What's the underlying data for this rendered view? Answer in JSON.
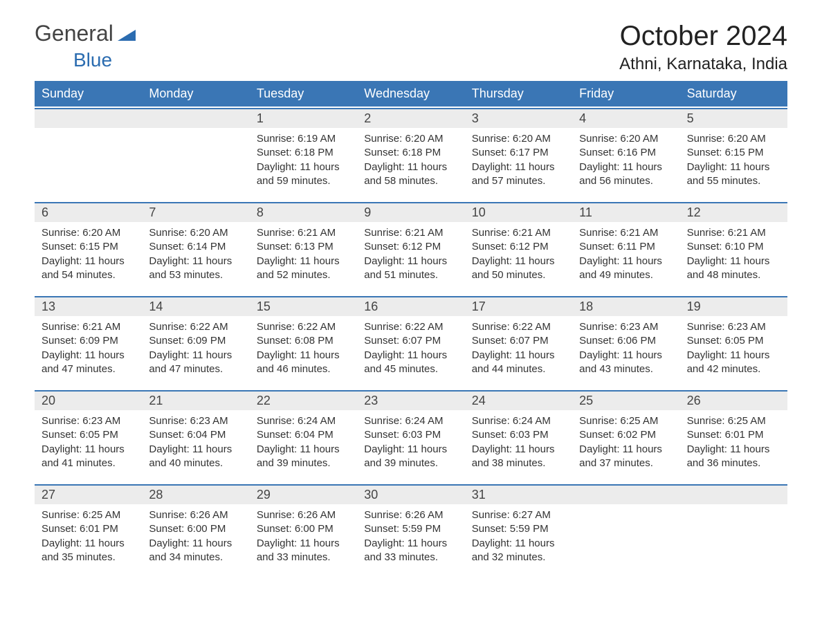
{
  "logo": {
    "general": "General",
    "blue": "Blue"
  },
  "title": "October 2024",
  "location": "Athni, Karnataka, India",
  "colors": {
    "header_bg": "#3a76b5",
    "header_text": "#ffffff",
    "daynum_bg": "#ececec",
    "border": "#3a76b5",
    "text": "#333333",
    "logo_blue": "#2b6cb0",
    "background": "#ffffff"
  },
  "typography": {
    "title_fontsize": 40,
    "location_fontsize": 24,
    "dayheader_fontsize": 18,
    "daynum_fontsize": 18,
    "cell_fontsize": 15,
    "font_family": "Arial"
  },
  "day_names": [
    "Sunday",
    "Monday",
    "Tuesday",
    "Wednesday",
    "Thursday",
    "Friday",
    "Saturday"
  ],
  "labels": {
    "sunrise": "Sunrise:",
    "sunset": "Sunset:",
    "daylight": "Daylight:"
  },
  "weeks": [
    [
      null,
      null,
      {
        "d": "1",
        "sr": "6:19 AM",
        "ss": "6:18 PM",
        "dl": "11 hours and 59 minutes."
      },
      {
        "d": "2",
        "sr": "6:20 AM",
        "ss": "6:18 PM",
        "dl": "11 hours and 58 minutes."
      },
      {
        "d": "3",
        "sr": "6:20 AM",
        "ss": "6:17 PM",
        "dl": "11 hours and 57 minutes."
      },
      {
        "d": "4",
        "sr": "6:20 AM",
        "ss": "6:16 PM",
        "dl": "11 hours and 56 minutes."
      },
      {
        "d": "5",
        "sr": "6:20 AM",
        "ss": "6:15 PM",
        "dl": "11 hours and 55 minutes."
      }
    ],
    [
      {
        "d": "6",
        "sr": "6:20 AM",
        "ss": "6:15 PM",
        "dl": "11 hours and 54 minutes."
      },
      {
        "d": "7",
        "sr": "6:20 AM",
        "ss": "6:14 PM",
        "dl": "11 hours and 53 minutes."
      },
      {
        "d": "8",
        "sr": "6:21 AM",
        "ss": "6:13 PM",
        "dl": "11 hours and 52 minutes."
      },
      {
        "d": "9",
        "sr": "6:21 AM",
        "ss": "6:12 PM",
        "dl": "11 hours and 51 minutes."
      },
      {
        "d": "10",
        "sr": "6:21 AM",
        "ss": "6:12 PM",
        "dl": "11 hours and 50 minutes."
      },
      {
        "d": "11",
        "sr": "6:21 AM",
        "ss": "6:11 PM",
        "dl": "11 hours and 49 minutes."
      },
      {
        "d": "12",
        "sr": "6:21 AM",
        "ss": "6:10 PM",
        "dl": "11 hours and 48 minutes."
      }
    ],
    [
      {
        "d": "13",
        "sr": "6:21 AM",
        "ss": "6:09 PM",
        "dl": "11 hours and 47 minutes."
      },
      {
        "d": "14",
        "sr": "6:22 AM",
        "ss": "6:09 PM",
        "dl": "11 hours and 47 minutes."
      },
      {
        "d": "15",
        "sr": "6:22 AM",
        "ss": "6:08 PM",
        "dl": "11 hours and 46 minutes."
      },
      {
        "d": "16",
        "sr": "6:22 AM",
        "ss": "6:07 PM",
        "dl": "11 hours and 45 minutes."
      },
      {
        "d": "17",
        "sr": "6:22 AM",
        "ss": "6:07 PM",
        "dl": "11 hours and 44 minutes."
      },
      {
        "d": "18",
        "sr": "6:23 AM",
        "ss": "6:06 PM",
        "dl": "11 hours and 43 minutes."
      },
      {
        "d": "19",
        "sr": "6:23 AM",
        "ss": "6:05 PM",
        "dl": "11 hours and 42 minutes."
      }
    ],
    [
      {
        "d": "20",
        "sr": "6:23 AM",
        "ss": "6:05 PM",
        "dl": "11 hours and 41 minutes."
      },
      {
        "d": "21",
        "sr": "6:23 AM",
        "ss": "6:04 PM",
        "dl": "11 hours and 40 minutes."
      },
      {
        "d": "22",
        "sr": "6:24 AM",
        "ss": "6:04 PM",
        "dl": "11 hours and 39 minutes."
      },
      {
        "d": "23",
        "sr": "6:24 AM",
        "ss": "6:03 PM",
        "dl": "11 hours and 39 minutes."
      },
      {
        "d": "24",
        "sr": "6:24 AM",
        "ss": "6:03 PM",
        "dl": "11 hours and 38 minutes."
      },
      {
        "d": "25",
        "sr": "6:25 AM",
        "ss": "6:02 PM",
        "dl": "11 hours and 37 minutes."
      },
      {
        "d": "26",
        "sr": "6:25 AM",
        "ss": "6:01 PM",
        "dl": "11 hours and 36 minutes."
      }
    ],
    [
      {
        "d": "27",
        "sr": "6:25 AM",
        "ss": "6:01 PM",
        "dl": "11 hours and 35 minutes."
      },
      {
        "d": "28",
        "sr": "6:26 AM",
        "ss": "6:00 PM",
        "dl": "11 hours and 34 minutes."
      },
      {
        "d": "29",
        "sr": "6:26 AM",
        "ss": "6:00 PM",
        "dl": "11 hours and 33 minutes."
      },
      {
        "d": "30",
        "sr": "6:26 AM",
        "ss": "5:59 PM",
        "dl": "11 hours and 33 minutes."
      },
      {
        "d": "31",
        "sr": "6:27 AM",
        "ss": "5:59 PM",
        "dl": "11 hours and 32 minutes."
      },
      null,
      null
    ]
  ]
}
